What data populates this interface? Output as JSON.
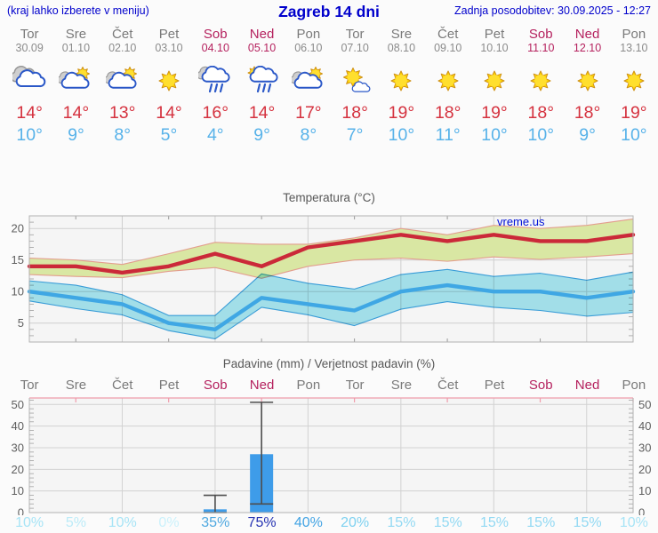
{
  "header": {
    "left_note": "(kraj lahko izberete v meniju)",
    "title": "Zagreb 14 dni",
    "updated": "Zadnja posodobitev: 30.09.2025 - 12:27"
  },
  "days": [
    {
      "name": "Tor",
      "date": "30.09",
      "weekend": false,
      "icon": "cloudy",
      "tmax_label": "14°",
      "tmin_label": "10°",
      "precip_prob": "10%",
      "prob_color": "#a7e4f6"
    },
    {
      "name": "Sre",
      "date": "01.10",
      "weekend": false,
      "icon": "sun-cloud",
      "tmax_label": "14°",
      "tmin_label": "9°",
      "precip_prob": "5%",
      "prob_color": "#bcebf8"
    },
    {
      "name": "Čet",
      "date": "02.10",
      "weekend": false,
      "icon": "sun-cloud",
      "tmax_label": "13°",
      "tmin_label": "8°",
      "precip_prob": "10%",
      "prob_color": "#a7e4f6"
    },
    {
      "name": "Pet",
      "date": "03.10",
      "weekend": false,
      "icon": "sunny",
      "tmax_label": "14°",
      "tmin_label": "5°",
      "precip_prob": "0%",
      "prob_color": "#cbf1fb"
    },
    {
      "name": "Sob",
      "date": "04.10",
      "weekend": true,
      "icon": "rain",
      "tmax_label": "16°",
      "tmin_label": "4°",
      "precip_prob": "35%",
      "prob_color": "#4fa8e0"
    },
    {
      "name": "Ned",
      "date": "05.10",
      "weekend": true,
      "icon": "sun-rain",
      "tmax_label": "14°",
      "tmin_label": "9°",
      "precip_prob": "75%",
      "prob_color": "#2633b2"
    },
    {
      "name": "Pon",
      "date": "06.10",
      "weekend": false,
      "icon": "sun-cloud",
      "tmax_label": "17°",
      "tmin_label": "8°",
      "precip_prob": "40%",
      "prob_color": "#43a4e4"
    },
    {
      "name": "Tor",
      "date": "07.10",
      "weekend": false,
      "icon": "sun-small-cloud",
      "tmax_label": "18°",
      "tmin_label": "7°",
      "precip_prob": "20%",
      "prob_color": "#7ed1f0"
    },
    {
      "name": "Sre",
      "date": "08.10",
      "weekend": false,
      "icon": "sunny",
      "tmax_label": "19°",
      "tmin_label": "10°",
      "precip_prob": "15%",
      "prob_color": "#92d9f3"
    },
    {
      "name": "Čet",
      "date": "09.10",
      "weekend": false,
      "icon": "sunny",
      "tmax_label": "18°",
      "tmin_label": "11°",
      "precip_prob": "15%",
      "prob_color": "#92d9f3"
    },
    {
      "name": "Pet",
      "date": "10.10",
      "weekend": false,
      "icon": "sunny",
      "tmax_label": "19°",
      "tmin_label": "10°",
      "precip_prob": "15%",
      "prob_color": "#92d9f3"
    },
    {
      "name": "Sob",
      "date": "11.10",
      "weekend": true,
      "icon": "sunny",
      "tmax_label": "18°",
      "tmin_label": "10°",
      "precip_prob": "15%",
      "prob_color": "#92d9f3"
    },
    {
      "name": "Ned",
      "date": "12.10",
      "weekend": true,
      "icon": "sunny",
      "tmax_label": "18°",
      "tmin_label": "9°",
      "precip_prob": "15%",
      "prob_color": "#92d9f3"
    },
    {
      "name": "Pon",
      "date": "13.10",
      "weekend": false,
      "icon": "sunny",
      "tmax_label": "19°",
      "tmin_label": "10°",
      "precip_prob": "10%",
      "prob_color": "#a7e4f6"
    }
  ],
  "chart_data": [
    {
      "type": "line",
      "title": "Temperatura (°C)",
      "watermark": "vreme.us",
      "categories": [
        "Tor 30.09",
        "Sre 01.10",
        "Čet 02.10",
        "Pet 03.10",
        "Sob 04.10",
        "Ned 05.10",
        "Pon 06.10",
        "Tor 07.10",
        "Sre 08.10",
        "Čet 09.10",
        "Pet 10.10",
        "Sob 11.10",
        "Ned 12.10",
        "Pon 13.10"
      ],
      "ylim": [
        2,
        22
      ],
      "yticks": [
        5,
        10,
        15,
        20
      ],
      "grid": true,
      "series": [
        {
          "name": "max temperature",
          "color": "#cb2939",
          "values": [
            14,
            14,
            13,
            14,
            16,
            14,
            17,
            18,
            19,
            18,
            19,
            18,
            18,
            19
          ],
          "band_upper": [
            15.3,
            15,
            14.3,
            16,
            17.8,
            17.5,
            17.5,
            18.5,
            20,
            19,
            20.5,
            20,
            20.5,
            21.5
          ],
          "band_lower": [
            12.7,
            12.4,
            12.2,
            13.2,
            13.8,
            12.1,
            14,
            15,
            15.3,
            14.8,
            15.5,
            15.1,
            15.5,
            16
          ],
          "band_fill": "#d9e7a3",
          "band_edge": "#e39e8e"
        },
        {
          "name": "min temperature",
          "color": "#3fa7e4",
          "values": [
            10,
            9,
            8,
            5,
            4,
            9,
            8,
            7,
            10,
            11,
            10,
            10,
            9,
            10
          ],
          "band_upper": [
            11.7,
            11,
            9.5,
            6.2,
            6.2,
            12.8,
            11.3,
            10.4,
            12.7,
            13.5,
            12.4,
            12.9,
            11.8,
            13.1
          ],
          "band_lower": [
            8.5,
            7.3,
            6.3,
            3.8,
            2.5,
            7.5,
            6.3,
            4.6,
            7.2,
            8.4,
            7.5,
            7,
            6.1,
            6.7
          ],
          "band_fill": "#a9e7f2",
          "band_edge": "#3ba3e0"
        }
      ]
    },
    {
      "type": "bar",
      "title": "Padavine (mm) / Verjetnost padavin (%)",
      "categories": [
        "Tor",
        "Sre",
        "Čet",
        "Pet",
        "Sob",
        "Ned",
        "Pon",
        "Tor",
        "Sre",
        "Čet",
        "Pet",
        "Sob",
        "Ned",
        "Pon"
      ],
      "ylim": [
        0,
        53
      ],
      "yticks": [
        0,
        10,
        20,
        30,
        40,
        50
      ],
      "grid": true,
      "bar_color": "#3e9ce9",
      "precip_mm": [
        0,
        0,
        0,
        0,
        1.5,
        27,
        0,
        0,
        0,
        0,
        0,
        0,
        0,
        0
      ],
      "whiskers": [
        null,
        null,
        null,
        null,
        [
          0,
          8
        ],
        [
          4,
          51
        ],
        null,
        null,
        null,
        null,
        null,
        null,
        null,
        null
      ],
      "probabilities_pct": [
        10,
        5,
        10,
        0,
        35,
        75,
        40,
        20,
        15,
        15,
        15,
        15,
        15,
        10
      ]
    }
  ]
}
